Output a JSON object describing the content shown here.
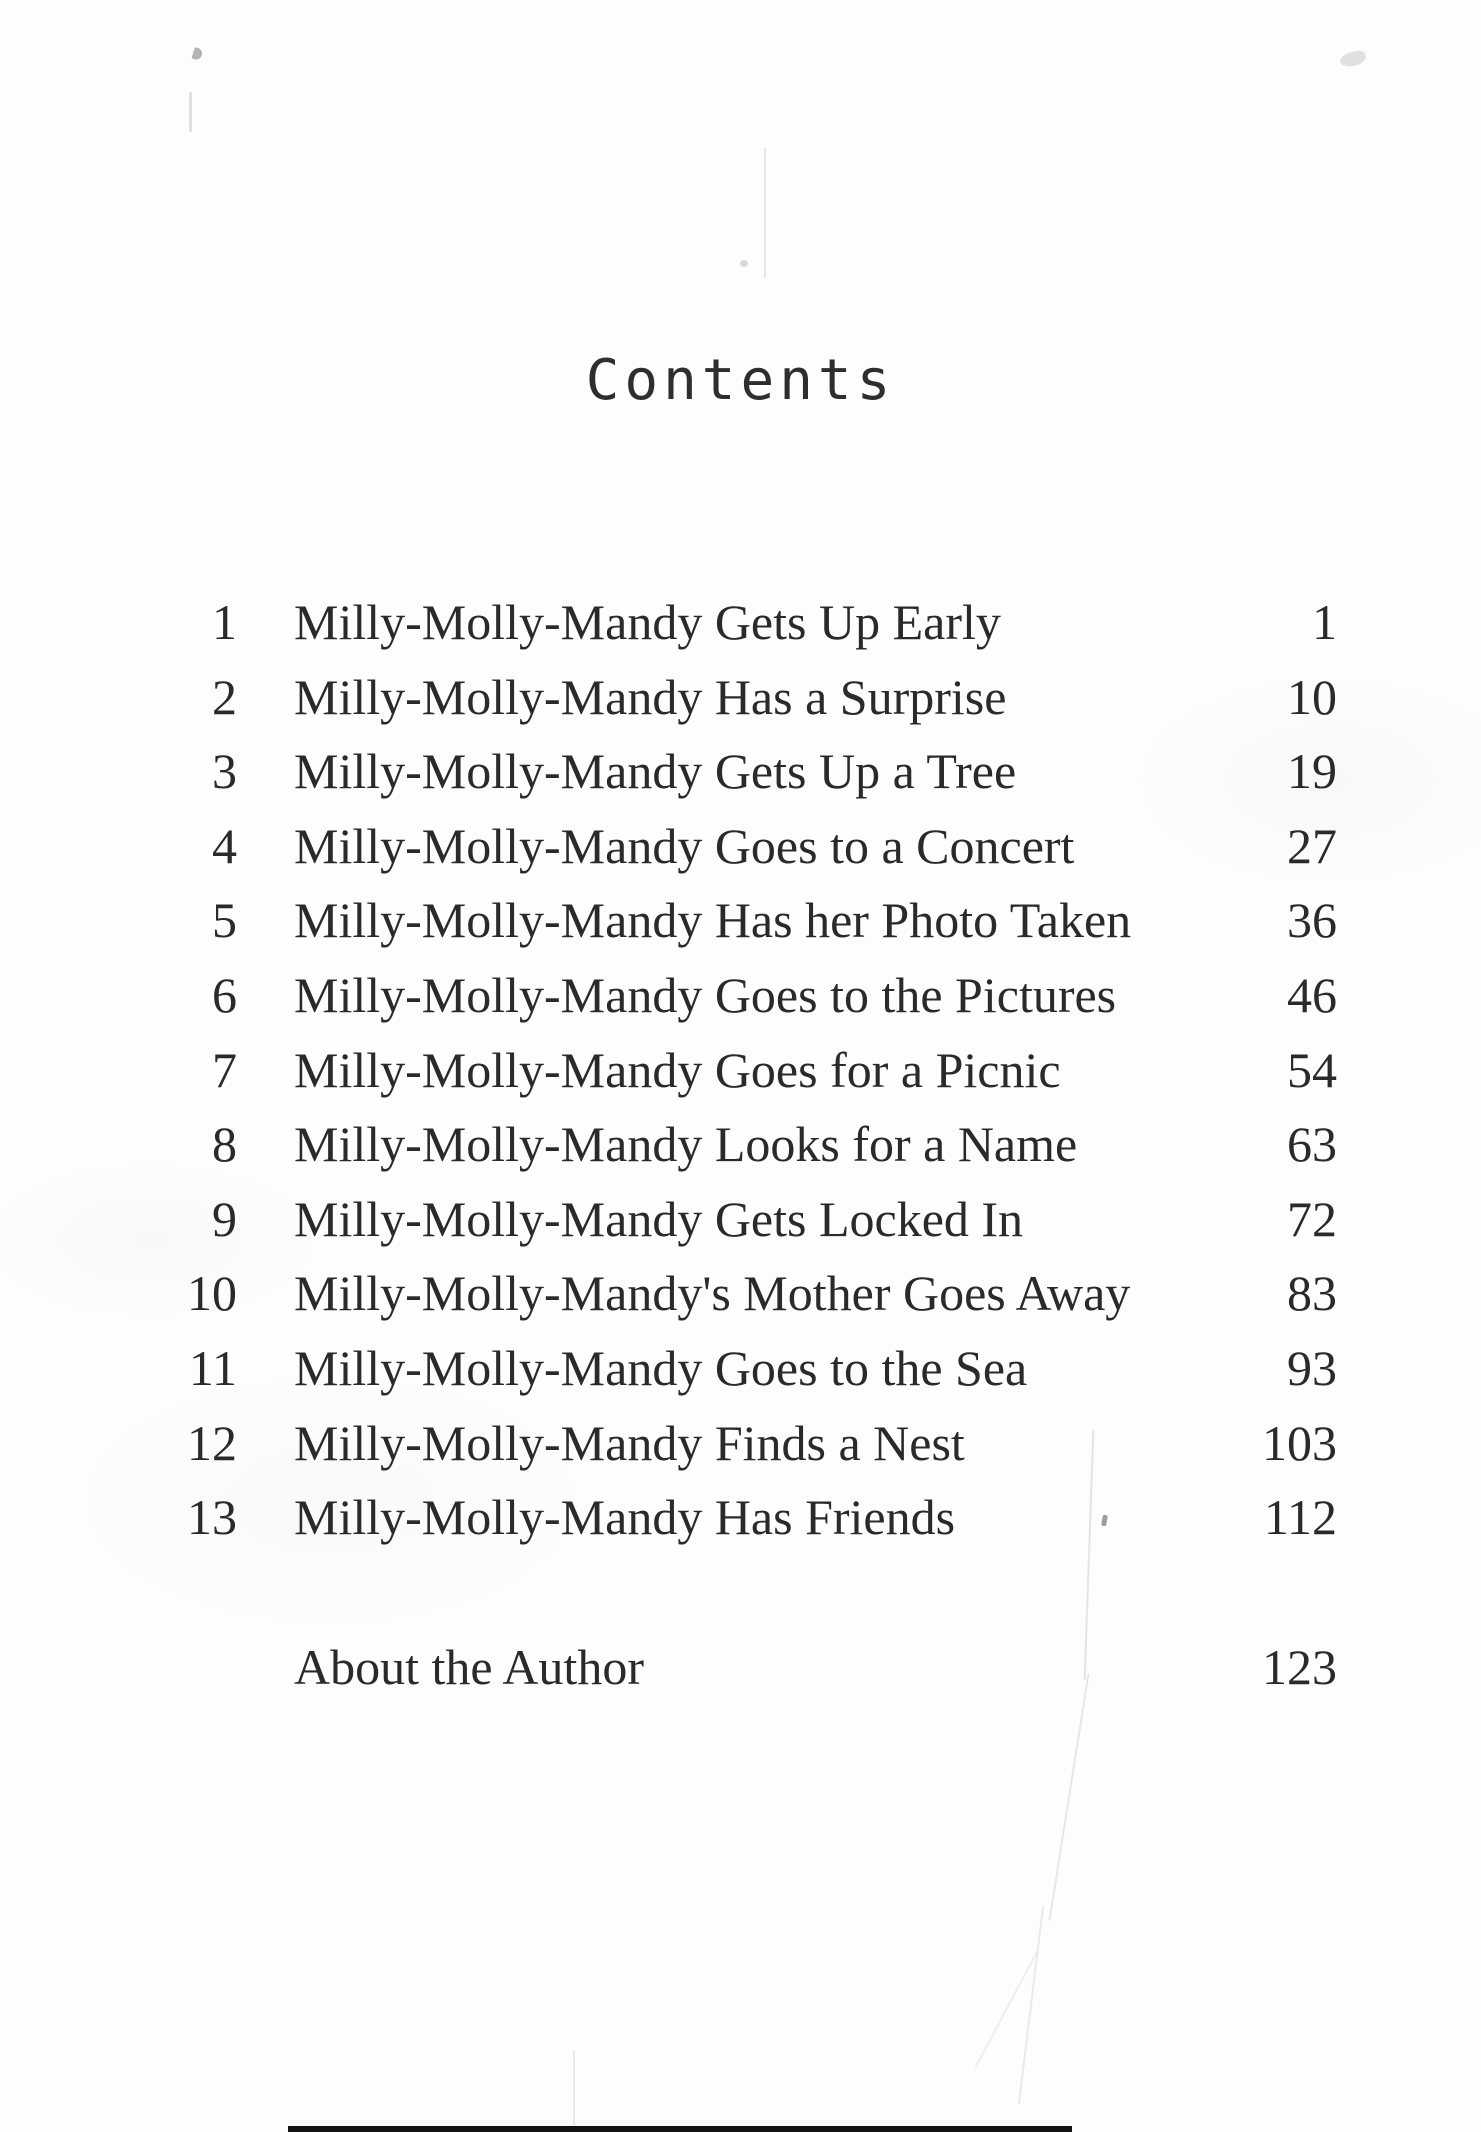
{
  "page": {
    "title": "Contents"
  },
  "toc": {
    "entries": [
      {
        "num": "1",
        "title": "Milly-Molly-Mandy Gets Up Early",
        "page": "1"
      },
      {
        "num": "2",
        "title": "Milly-Molly-Mandy Has a Surprise",
        "page": "10"
      },
      {
        "num": "3",
        "title": "Milly-Molly-Mandy Gets Up a Tree",
        "page": "19"
      },
      {
        "num": "4",
        "title": "Milly-Molly-Mandy Goes to a Concert",
        "page": "27"
      },
      {
        "num": "5",
        "title": "Milly-Molly-Mandy Has her Photo Taken",
        "page": "36"
      },
      {
        "num": "6",
        "title": "Milly-Molly-Mandy Goes to the Pictures",
        "page": "46"
      },
      {
        "num": "7",
        "title": "Milly-Molly-Mandy Goes for a Picnic",
        "page": "54"
      },
      {
        "num": "8",
        "title": "Milly-Molly-Mandy Looks for a Name",
        "page": "63"
      },
      {
        "num": "9",
        "title": "Milly-Molly-Mandy Gets Locked In",
        "page": "72"
      },
      {
        "num": "10",
        "title": "Milly-Molly-Mandy's Mother Goes Away",
        "page": "83"
      },
      {
        "num": "11",
        "title": "Milly-Molly-Mandy Goes to the Sea",
        "page": "93"
      },
      {
        "num": "12",
        "title": "Milly-Molly-Mandy Finds a Nest",
        "page": "103"
      },
      {
        "num": "13",
        "title": "Milly-Molly-Mandy Has Friends",
        "page": "112"
      }
    ]
  },
  "about": {
    "label": "About the Author",
    "page": "123"
  },
  "colors": {
    "paper": "#fdfdfd",
    "text": "#2a2a2a",
    "title": "#2e2e2e"
  }
}
